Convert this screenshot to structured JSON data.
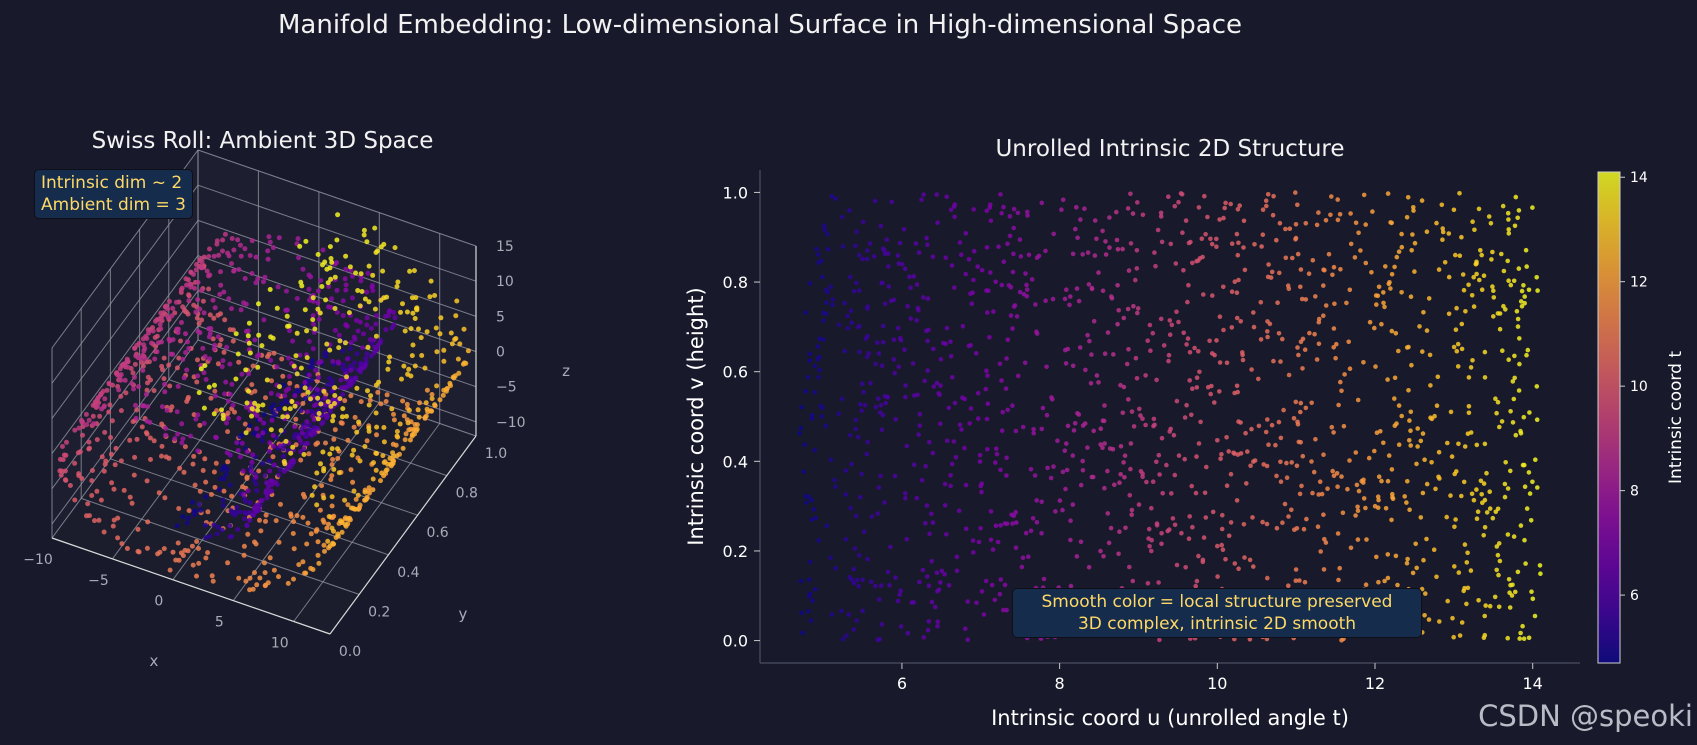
{
  "suptitle": "Manifold Embedding: Low-dimensional Surface in High-dimensional Space",
  "watermark": "CSDN @speoki",
  "chart_data": [
    {
      "type": "scatter",
      "projection": "3d",
      "title": "Swiss Roll: Ambient 3D Space",
      "xlabel": "x",
      "ylabel": "y",
      "zlabel": "z",
      "x_ticks": [
        "−10",
        "−5",
        "0",
        "5",
        "10"
      ],
      "y_ticks": [
        "0.0",
        "0.2",
        "0.4",
        "0.6",
        "0.8",
        "1.0"
      ],
      "z_ticks": [
        "15",
        "10",
        "5",
        "0",
        "−5",
        "−10"
      ],
      "xlim": [
        -10,
        13
      ],
      "ylim": [
        0,
        1
      ],
      "zlim": [
        -12,
        15
      ],
      "colormap": "plasma",
      "color_by": "t",
      "annotation": [
        "Intrinsic dim ~ 2",
        "Ambient dim = 3"
      ],
      "surface": "x = t cos t, z = t sin t, y = v, t in [4.7, 14.1], v in [0, 1]",
      "approx_points": 1500
    },
    {
      "type": "scatter",
      "title": "Unrolled Intrinsic 2D Structure",
      "xlabel": "Intrinsic coord u (unrolled angle t)",
      "ylabel": "Intrinsic coord v (height)",
      "x_ticks": [
        "6",
        "8",
        "10",
        "12",
        "14"
      ],
      "y_ticks": [
        "0.0",
        "0.2",
        "0.4",
        "0.6",
        "0.8",
        "1.0"
      ],
      "xlim": [
        4.2,
        14.6
      ],
      "ylim": [
        -0.05,
        1.05
      ],
      "colormap": "plasma",
      "colorbar_label": "Intrinsic coord t",
      "colorbar_ticks": [
        "6",
        "8",
        "10",
        "12",
        "14"
      ],
      "colorbar_range": [
        4.7,
        14.1
      ],
      "annotation": [
        "Smooth color = local structure preserved",
        "3D complex, intrinsic 2D smooth"
      ],
      "point_distribution": "approx. 1500 points, u uniform in [4.7, 14.1], v uniform in [0, 1], color = u",
      "grid": false
    }
  ]
}
